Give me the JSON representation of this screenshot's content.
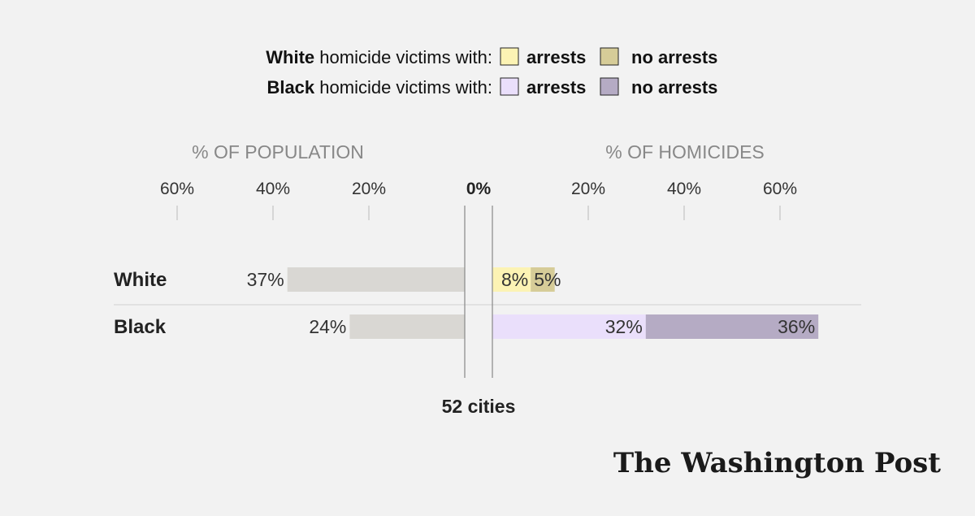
{
  "legend": {
    "rows": [
      {
        "bold": "White",
        "rest": " homicide victims with:",
        "items": [
          {
            "label": "arrests",
            "color": "#fcf3b4"
          },
          {
            "label": "no arrests",
            "color": "#d6cc98"
          }
        ]
      },
      {
        "bold": "Black",
        "rest": " homicide victims with:",
        "items": [
          {
            "label": "arrests",
            "color": "#eadffb"
          },
          {
            "label": "no arrests",
            "color": "#b5abc4"
          }
        ]
      }
    ]
  },
  "colors": {
    "population_bar": "#d9d7d3",
    "axis": "#888888",
    "header_text": "#888888",
    "row_divider": "#d0d0d0"
  },
  "chart_data": {
    "type": "bar",
    "left_axis_label": "% OF POPULATION",
    "right_axis_label": "% OF HOMICIDES",
    "ticks": [
      60,
      40,
      20
    ],
    "tick_labels": [
      "60%",
      "40%",
      "20%"
    ],
    "zero_label": "0%",
    "categories": [
      "White",
      "Black"
    ],
    "population": [
      37,
      24
    ],
    "population_labels": [
      "37%",
      "24%"
    ],
    "series": [
      {
        "name": "arrests",
        "values": [
          8,
          32
        ],
        "labels": [
          "8%",
          "32%"
        ],
        "colors": [
          "#fcf3b4",
          "#eadffb"
        ]
      },
      {
        "name": "no arrests",
        "values": [
          5,
          36
        ],
        "labels": [
          "5%",
          "36%"
        ],
        "colors": [
          "#d6cc98",
          "#b5abc4"
        ]
      }
    ],
    "footer": "52 cities",
    "xlim": [
      0,
      60
    ]
  },
  "branding": {
    "logo_text": "The Washington Post"
  }
}
